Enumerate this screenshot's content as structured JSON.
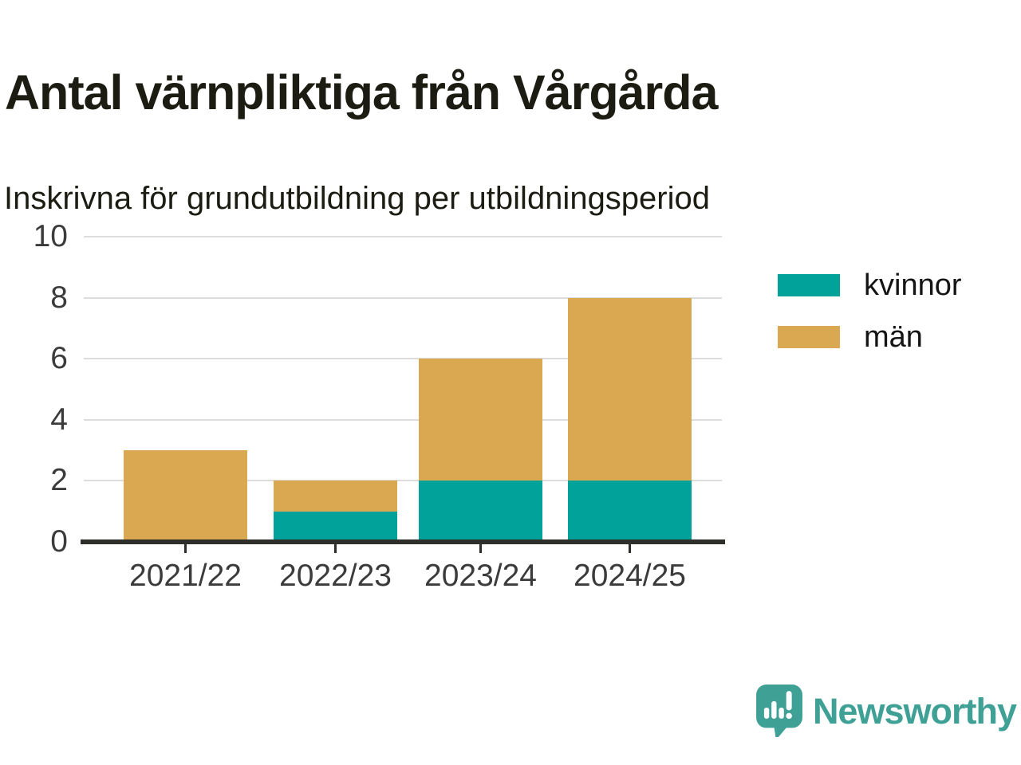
{
  "header": {
    "title": "Antal värnpliktiga från Vårgårda",
    "subtitle": "Inskrivna för grundutbildning per utbildningsperiod"
  },
  "colors": {
    "kvinnor": "#00a29a",
    "man": "#d9a850",
    "grid": "#dddddd",
    "axis": "#2e2e2a",
    "tick_text": "#3b3b3b",
    "title_text": "#1c1c13",
    "brand_teal": "#3fa096"
  },
  "chart_data": {
    "type": "bar",
    "stacked": true,
    "title": "Antal värnpliktiga från Vårgårda",
    "subtitle": "Inskrivna för grundutbildning per utbildningsperiod",
    "categories": [
      "2021/22",
      "2022/23",
      "2023/24",
      "2024/25"
    ],
    "series": [
      {
        "name": "kvinnor",
        "color": "#00a29a",
        "values": [
          0,
          1,
          2,
          2
        ]
      },
      {
        "name": "män",
        "color": "#d9a850",
        "values": [
          3,
          1,
          4,
          6
        ]
      }
    ],
    "totals": [
      3,
      2,
      6,
      8
    ],
    "xlabel": "",
    "ylabel": "",
    "ylim": [
      0,
      10
    ],
    "yticks": [
      0,
      2,
      4,
      6,
      8,
      10
    ],
    "grid": true,
    "legend_position": "right"
  },
  "legend": {
    "items": [
      {
        "label": "kvinnor",
        "color": "#00a29a"
      },
      {
        "label": "män",
        "color": "#d9a850"
      }
    ]
  },
  "branding": {
    "name": "Newsworthy",
    "icon": "newsworthy-chart-bubble-icon"
  }
}
